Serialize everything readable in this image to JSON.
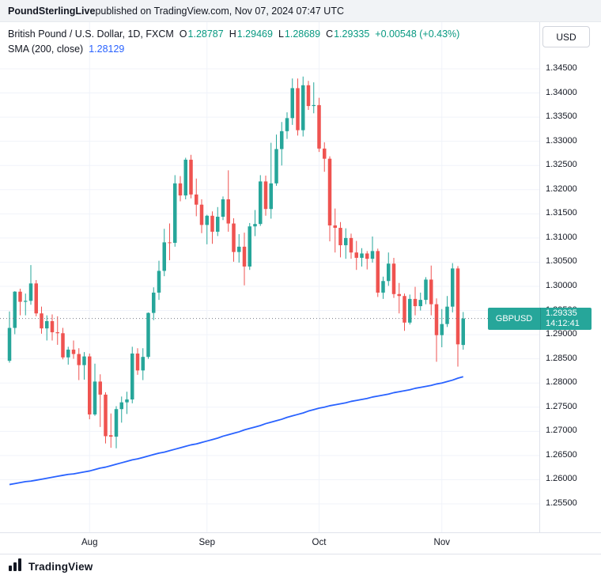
{
  "banner": {
    "source": "PoundSterlingLive",
    "rest": " published on TradingView.com, Nov 07, 2024 07:47 UTC"
  },
  "legend": {
    "symbol_title": "British Pound / U.S. Dollar, 1D, FXCM",
    "o_label": "O",
    "o": "1.28787",
    "h_label": "H",
    "h": "1.29469",
    "l_label": "L",
    "l": "1.28689",
    "c_label": "C",
    "c": "1.29335",
    "change": "+0.00548 (+0.43%)",
    "sma_label": "SMA (200, close)",
    "sma_value": "1.28129"
  },
  "currency_button": "USD",
  "last_price": {
    "symbol": "GBPUSD",
    "price": "1.29335",
    "countdown": "14:12:41"
  },
  "price_scale": {
    "labels": [
      "1.34500",
      "1.34000",
      "1.33500",
      "1.33000",
      "1.32500",
      "1.32000",
      "1.31500",
      "1.31000",
      "1.30500",
      "1.30000",
      "1.29500",
      "1.29000",
      "1.28500",
      "1.28000",
      "1.27500",
      "1.27000",
      "1.26500",
      "1.26000",
      "1.25500"
    ]
  },
  "x_axis": {
    "months": [
      {
        "label": "Aug",
        "index": 15
      },
      {
        "label": "Sep",
        "index": 37
      },
      {
        "label": "Oct",
        "index": 58
      },
      {
        "label": "Nov",
        "index": 81
      }
    ]
  },
  "footer": {
    "brand": "TradingView"
  },
  "colors": {
    "up": "#26a69a",
    "down": "#ef5350",
    "sma_line": "#2962ff",
    "last_badge": "#26a69a",
    "grid": "#f0f3fa",
    "dotted_line": "#787b86",
    "legend_up_text": "#089981",
    "sma_text": "#2962ff"
  },
  "chart_data": {
    "type": "candlestick",
    "symbol": "GBPUSD",
    "title": "British Pound / U.S. Dollar, 1D, FXCM",
    "timeframe": "1D",
    "exchange": "FXCM",
    "indicator": {
      "name": "SMA (200, close)",
      "current_value": 1.28129
    },
    "ohlc_current": {
      "open": 1.28787,
      "high": 1.29469,
      "low": 1.28689,
      "close": 1.29335,
      "change": "+0.00548 (+0.43%)"
    },
    "ylim": [
      1.255,
      1.345
    ],
    "grid": true,
    "candles": [
      [
        "Jul 11",
        1.2846,
        1.2948,
        1.2842,
        1.2914
      ],
      [
        "Jul 12",
        1.2914,
        1.299,
        1.2901,
        1.2989
      ],
      [
        "Jul 15",
        1.2989,
        1.2995,
        1.294,
        1.2968
      ],
      [
        "Jul 16",
        1.2968,
        1.2985,
        1.294,
        1.297
      ],
      [
        "Jul 17",
        1.297,
        1.3044,
        1.2962,
        1.3006
      ],
      [
        "Jul 18",
        1.3006,
        1.3013,
        1.2938,
        1.2944
      ],
      [
        "Jul 19",
        1.2944,
        1.2958,
        1.2902,
        1.2913
      ],
      [
        "Jul 22",
        1.2913,
        1.294,
        1.2888,
        1.2928
      ],
      [
        "Jul 23",
        1.2928,
        1.2942,
        1.2888,
        1.2905
      ],
      [
        "Jul 24",
        1.2905,
        1.2938,
        1.2879,
        1.2903
      ],
      [
        "Jul 25",
        1.2903,
        1.2914,
        1.2849,
        1.2853
      ],
      [
        "Jul 26",
        1.2853,
        1.2875,
        1.2838,
        1.2869
      ],
      [
        "Jul 29",
        1.2869,
        1.2888,
        1.285,
        1.286
      ],
      [
        "Jul 30",
        1.286,
        1.2872,
        1.2806,
        1.2837
      ],
      [
        "Jul 31",
        1.2837,
        1.2864,
        1.2807,
        1.2855
      ],
      [
        "Aug 1",
        1.2855,
        1.2861,
        1.2725,
        1.2735
      ],
      [
        "Aug 2",
        1.2735,
        1.284,
        1.2732,
        1.2803
      ],
      [
        "Aug 5",
        1.2803,
        1.2818,
        1.2709,
        1.2776
      ],
      [
        "Aug 6",
        1.2776,
        1.2781,
        1.2675,
        1.269
      ],
      [
        "Aug 7",
        1.2692,
        1.2737,
        1.2666,
        1.2689
      ],
      [
        "Aug 8",
        1.2689,
        1.2752,
        1.2665,
        1.2746
      ],
      [
        "Aug 9",
        1.2746,
        1.2772,
        1.2718,
        1.276
      ],
      [
        "Aug 12",
        1.276,
        1.2782,
        1.2736,
        1.2766
      ],
      [
        "Aug 13",
        1.2766,
        1.2875,
        1.2758,
        1.2861
      ],
      [
        "Aug 14",
        1.2861,
        1.2872,
        1.2817,
        1.2826
      ],
      [
        "Aug 15",
        1.2826,
        1.2872,
        1.2806,
        1.2854
      ],
      [
        "Aug 16",
        1.2854,
        1.2946,
        1.285,
        1.2945
      ],
      [
        "Aug 19",
        1.2945,
        1.2998,
        1.293,
        1.2987
      ],
      [
        "Aug 20",
        1.2987,
        1.3053,
        1.2972,
        1.3032
      ],
      [
        "Aug 21",
        1.3032,
        1.3119,
        1.3021,
        1.3091
      ],
      [
        "Aug 22",
        1.3091,
        1.313,
        1.3054,
        1.309
      ],
      [
        "Aug 23",
        1.309,
        1.323,
        1.3082,
        1.3213
      ],
      [
        "Aug 26",
        1.3213,
        1.3228,
        1.3176,
        1.3188
      ],
      [
        "Aug 27",
        1.3188,
        1.3266,
        1.318,
        1.3262
      ],
      [
        "Aug 28",
        1.3262,
        1.3272,
        1.3182,
        1.319
      ],
      [
        "Aug 29",
        1.319,
        1.3223,
        1.3145,
        1.3169
      ],
      [
        "Aug 30",
        1.3169,
        1.318,
        1.311,
        1.3127
      ],
      [
        "Sep 2",
        1.3127,
        1.3148,
        1.3087,
        1.3146
      ],
      [
        "Sep 3",
        1.3146,
        1.3155,
        1.3088,
        1.3113
      ],
      [
        "Sep 4",
        1.3113,
        1.3164,
        1.3104,
        1.3144
      ],
      [
        "Sep 5",
        1.3144,
        1.3186,
        1.3137,
        1.318
      ],
      [
        "Sep 6",
        1.318,
        1.324,
        1.3113,
        1.313
      ],
      [
        "Sep 9",
        1.313,
        1.3141,
        1.3051,
        1.3071
      ],
      [
        "Sep 10",
        1.3071,
        1.3108,
        1.3049,
        1.3082
      ],
      [
        "Sep 11",
        1.3082,
        1.3111,
        1.3002,
        1.3041
      ],
      [
        "Sep 12",
        1.3041,
        1.3131,
        1.3034,
        1.3124
      ],
      [
        "Sep 13",
        1.3124,
        1.3158,
        1.3104,
        1.3129
      ],
      [
        "Sep 16",
        1.3129,
        1.323,
        1.3125,
        1.3217
      ],
      [
        "Sep 17",
        1.3217,
        1.3229,
        1.3146,
        1.316
      ],
      [
        "Sep 18",
        1.316,
        1.3297,
        1.314,
        1.3213
      ],
      [
        "Sep 19",
        1.3213,
        1.3314,
        1.3208,
        1.3284
      ],
      [
        "Sep 20",
        1.3284,
        1.334,
        1.325,
        1.3321
      ],
      [
        "Sep 23",
        1.3321,
        1.336,
        1.3305,
        1.3348
      ],
      [
        "Sep 24",
        1.3348,
        1.343,
        1.3334,
        1.341
      ],
      [
        "Sep 25",
        1.341,
        1.343,
        1.3312,
        1.3323
      ],
      [
        "Sep 26",
        1.3323,
        1.3434,
        1.331,
        1.3416
      ],
      [
        "Sep 27",
        1.3416,
        1.3425,
        1.3365,
        1.3373
      ],
      [
        "Sep 30",
        1.3373,
        1.3422,
        1.3358,
        1.3375
      ],
      [
        "Oct 1",
        1.3375,
        1.339,
        1.3278,
        1.3285
      ],
      [
        "Oct 2",
        1.3285,
        1.3298,
        1.3237,
        1.3264
      ],
      [
        "Oct 3",
        1.3264,
        1.3269,
        1.3093,
        1.3126
      ],
      [
        "Oct 4",
        1.3126,
        1.3161,
        1.307,
        1.3121
      ],
      [
        "Oct 7",
        1.3121,
        1.3133,
        1.306,
        1.3085
      ],
      [
        "Oct 8",
        1.3085,
        1.312,
        1.3057,
        1.31
      ],
      [
        "Oct 9",
        1.31,
        1.3109,
        1.3057,
        1.307
      ],
      [
        "Oct 10",
        1.307,
        1.3094,
        1.3034,
        1.3059
      ],
      [
        "Oct 11",
        1.3059,
        1.3079,
        1.3041,
        1.3068
      ],
      [
        "Oct 14",
        1.3068,
        1.3073,
        1.3035,
        1.3057
      ],
      [
        "Oct 15",
        1.3057,
        1.3103,
        1.3049,
        1.3073
      ],
      [
        "Oct 16",
        1.3073,
        1.3078,
        1.2978,
        1.2987
      ],
      [
        "Oct 17",
        1.2987,
        1.302,
        1.2974,
        1.3011
      ],
      [
        "Oct 18",
        1.3011,
        1.307,
        1.3001,
        1.3047
      ],
      [
        "Oct 21",
        1.3047,
        1.3059,
        1.2976,
        1.2984
      ],
      [
        "Oct 22",
        1.2984,
        1.3007,
        1.2944,
        1.298
      ],
      [
        "Oct 23",
        1.298,
        1.2985,
        1.2908,
        1.2925
      ],
      [
        "Oct 24",
        1.2925,
        1.2983,
        1.2921,
        1.2974
      ],
      [
        "Oct 25",
        1.2974,
        1.2999,
        1.294,
        1.2959
      ],
      [
        "Oct 28",
        1.2959,
        1.2987,
        1.295,
        1.2972
      ],
      [
        "Oct 29",
        1.2972,
        1.3019,
        1.2963,
        1.3014
      ],
      [
        "Oct 30",
        1.3014,
        1.3043,
        1.294,
        1.2963
      ],
      [
        "Oct 31",
        1.2963,
        1.2975,
        1.2844,
        1.2899
      ],
      [
        "Nov 1",
        1.2899,
        1.2953,
        1.2874,
        1.2922
      ],
      [
        "Nov 4",
        1.2922,
        1.298,
        1.2916,
        1.2958
      ],
      [
        "Nov 5",
        1.2958,
        1.3048,
        1.2946,
        1.3037
      ],
      [
        "Nov 6",
        1.3037,
        1.3042,
        1.2834,
        1.288
      ],
      [
        "Nov 7",
        1.28787,
        1.29469,
        1.28689,
        1.29335
      ]
    ],
    "sma_200": [
      1.259,
      1.2592,
      1.2594,
      1.2596,
      1.2597,
      1.2599,
      1.2601,
      1.2603,
      1.2605,
      1.2607,
      1.2609,
      1.2611,
      1.2612,
      1.2614,
      1.2616,
      1.2618,
      1.2621,
      1.2624,
      1.2626,
      1.2629,
      1.2632,
      1.2635,
      1.2638,
      1.2641,
      1.2643,
      1.2646,
      1.2649,
      1.2652,
      1.2655,
      1.2657,
      1.266,
      1.2663,
      1.2666,
      1.2669,
      1.2672,
      1.2674,
      1.2677,
      1.268,
      1.2683,
      1.2686,
      1.269,
      1.2693,
      1.2696,
      1.2699,
      1.2703,
      1.2706,
      1.2709,
      1.2712,
      1.2716,
      1.2719,
      1.2722,
      1.2725,
      1.2729,
      1.2732,
      1.2735,
      1.2738,
      1.2742,
      1.2745,
      1.2748,
      1.275,
      1.2753,
      1.2755,
      1.2757,
      1.2759,
      1.2762,
      1.2764,
      1.2766,
      1.2768,
      1.2771,
      1.2773,
      1.2775,
      1.2777,
      1.278,
      1.2782,
      1.2784,
      1.2786,
      1.2789,
      1.2791,
      1.2793,
      1.2795,
      1.2798,
      1.28,
      1.2803,
      1.2806,
      1.281,
      1.2813
    ]
  }
}
